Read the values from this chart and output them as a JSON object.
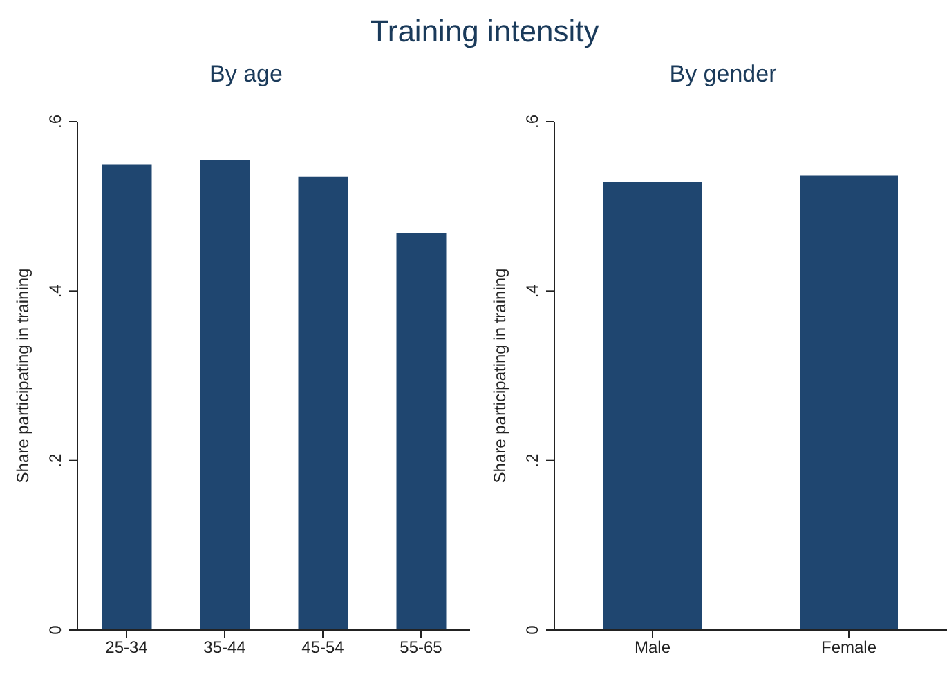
{
  "chart_data": [
    {
      "type": "bar",
      "title": "Training intensity",
      "subtitle": "By age",
      "ylabel": "Share participating in training",
      "categories": [
        "25-34",
        "35-44",
        "45-54",
        "55-65"
      ],
      "values": [
        0.549,
        0.555,
        0.535,
        0.468
      ],
      "color": "#1f4670",
      "ylim": [
        0,
        0.6
      ],
      "yticks": [
        {
          "value": 0,
          "label": "0"
        },
        {
          "value": 0.2,
          "label": ".2"
        },
        {
          "value": 0.4,
          "label": ".4"
        },
        {
          "value": 0.6,
          "label": ".6"
        }
      ],
      "grid": false
    },
    {
      "type": "bar",
      "subtitle": "By gender",
      "ylabel": "Share participating in training",
      "categories": [
        "Male",
        "Female"
      ],
      "values": [
        0.529,
        0.536
      ],
      "color": "#1f4670",
      "ylim": [
        0,
        0.6
      ],
      "yticks": [
        {
          "value": 0,
          "label": "0"
        },
        {
          "value": 0.2,
          "label": ".2"
        },
        {
          "value": 0.4,
          "label": ".4"
        },
        {
          "value": 0.6,
          "label": ".6"
        }
      ],
      "grid": false
    }
  ]
}
